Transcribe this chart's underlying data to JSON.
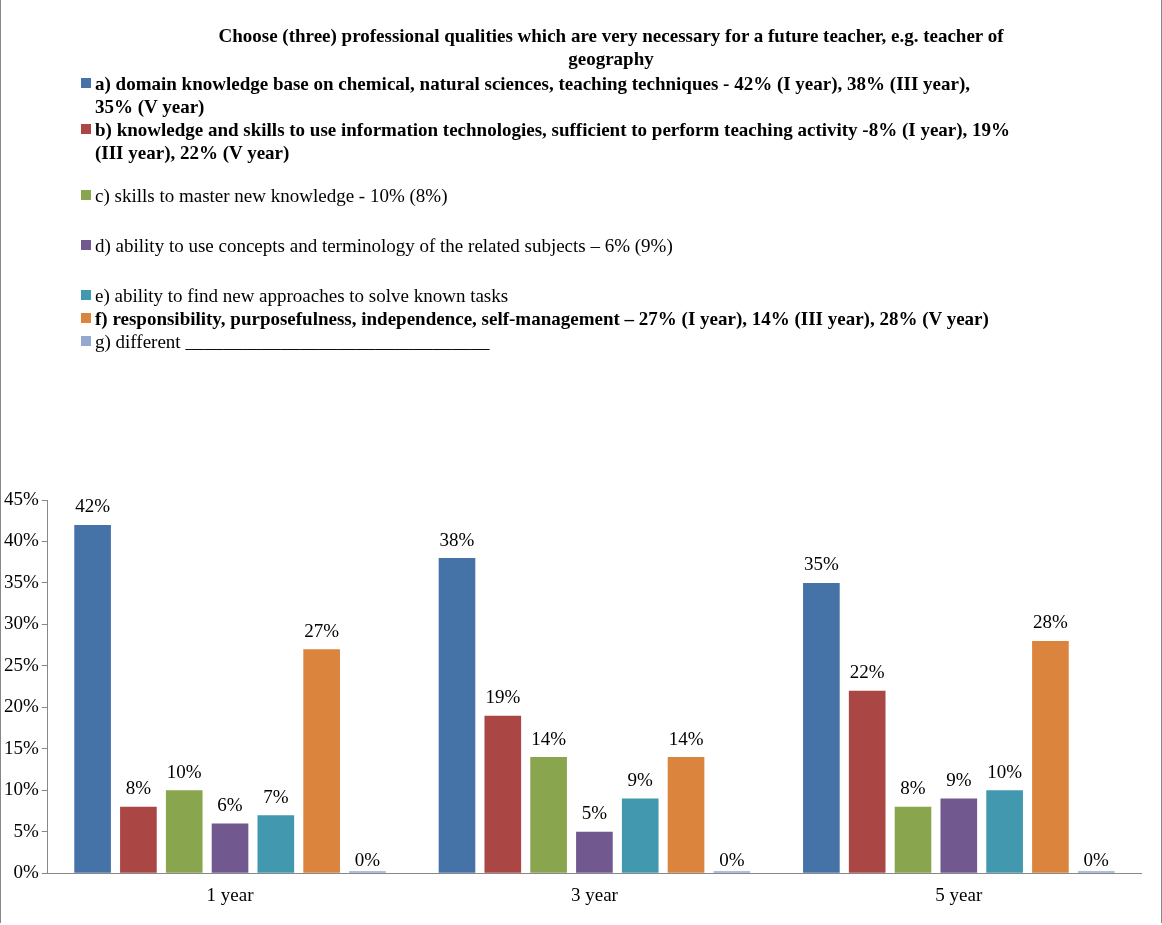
{
  "chart_data": {
    "type": "bar",
    "title": "Choose (three) professional qualities which are very necessary for a future teacher, e.g. teacher of geography",
    "categories": [
      "1 year",
      "3 year",
      "5 year"
    ],
    "series": [
      {
        "name": "a) domain knowledge base on chemical, natural sciences, teaching techniques - 42% (I year), 38% (III year), 35% (V year)",
        "color": "#4572a7",
        "values": [
          42,
          38,
          35
        ],
        "value_labels": [
          "42%",
          "38%",
          "35%"
        ]
      },
      {
        "name": "b) knowledge and skills to use information technologies, sufficient to perform teaching activity -8% (I year), 19% (III year), 22% (V year)",
        "color": "#aa4643",
        "values": [
          8,
          19,
          22
        ],
        "value_labels": [
          "8%",
          "19%",
          "22%"
        ]
      },
      {
        "name": "c) skills to master new knowledge - 10%    (8%)",
        "color": "#89a54e",
        "values": [
          10,
          14,
          8
        ],
        "value_labels": [
          "10%",
          "14%",
          "8%"
        ]
      },
      {
        "name": "d) ability to use concepts and terminology of the related subjects – 6%  (9%)",
        "color": "#71588f",
        "values": [
          6,
          5,
          9
        ],
        "value_labels": [
          "6%",
          "5%",
          "9%"
        ]
      },
      {
        "name": "e) ability to find new approaches to solve known tasks",
        "color": "#4198af",
        "values": [
          7,
          9,
          10
        ],
        "value_labels": [
          "7%",
          "9%",
          "10%"
        ]
      },
      {
        "name": "f) responsibility, purposefulness, independence, self-management –  27% (I year), 14% (III year), 28% (V year)",
        "color": "#db843d",
        "values": [
          27,
          14,
          28
        ],
        "value_labels": [
          "27%",
          "14%",
          "28%"
        ]
      },
      {
        "name": "g) different ________________________________",
        "color": "#93a9cf",
        "values": [
          0,
          0,
          0
        ],
        "value_labels": [
          "0%",
          "0%",
          "0%"
        ]
      }
    ],
    "ylim": [
      0,
      45
    ],
    "yticks": [
      {
        "value": 0,
        "label": "0%"
      },
      {
        "value": 5,
        "label": "5%"
      },
      {
        "value": 10,
        "label": "10%"
      },
      {
        "value": 15,
        "label": "15%"
      },
      {
        "value": 20,
        "label": "20%"
      },
      {
        "value": 25,
        "label": "25%"
      },
      {
        "value": 30,
        "label": "30%"
      },
      {
        "value": 35,
        "label": "35%"
      },
      {
        "value": 40,
        "label": "40%"
      },
      {
        "value": 45,
        "label": "45%"
      }
    ],
    "grid": false,
    "legend": "top"
  }
}
